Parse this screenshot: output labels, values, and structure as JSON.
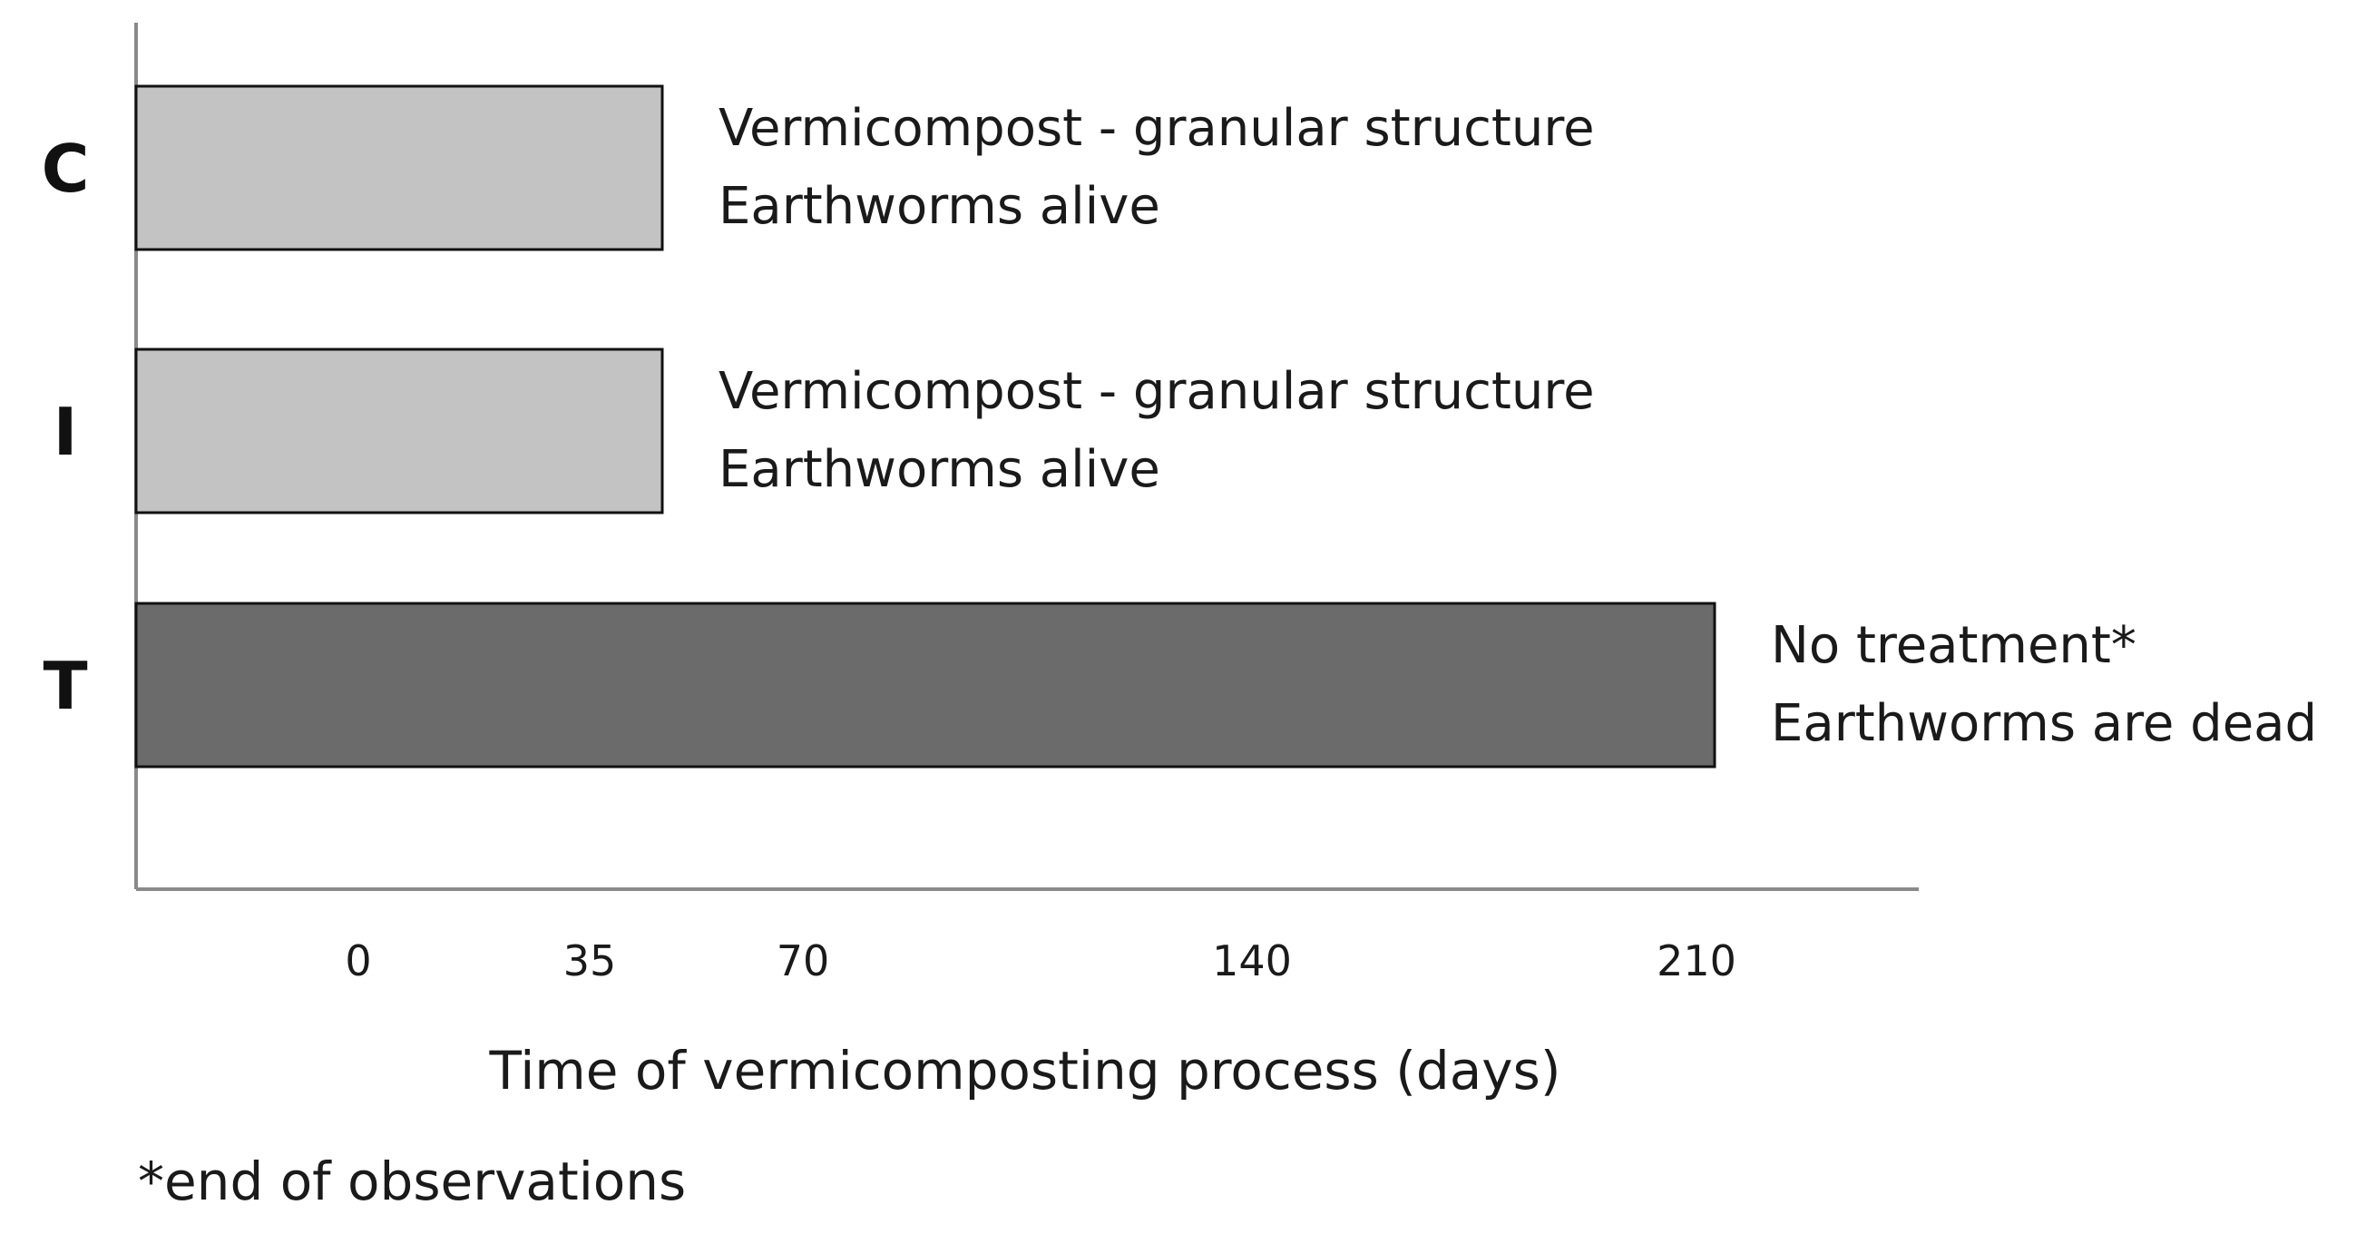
{
  "chart_data": {
    "type": "bar",
    "orientation": "horizontal",
    "categories": [
      "C",
      "I",
      "T"
    ],
    "values": [
      70,
      70,
      210
    ],
    "colors": [
      "#c3c3c3",
      "#c3c3c3",
      "#6b6b6b"
    ],
    "annotations": [
      [
        "Vermicompost - granular structure",
        "Earthworms alive"
      ],
      [
        "Vermicompost - granular structure",
        "Earthworms alive"
      ],
      [
        "No treatment*",
        "Earthworms are dead"
      ]
    ],
    "xticks": [
      0,
      35,
      70,
      140,
      210
    ],
    "xlabel": "Time of vermicomposting process (days)",
    "ylabel": "",
    "title": "",
    "footnote": "*end of observations",
    "grid": false,
    "legend": "none"
  }
}
